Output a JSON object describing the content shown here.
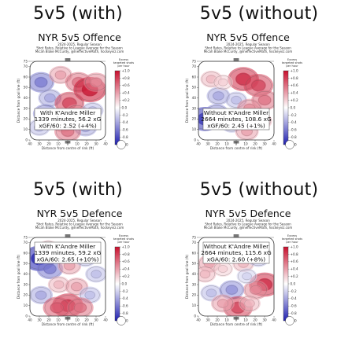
{
  "panels": [
    {
      "heading": "5v5 (with)",
      "title": "NYR 5v5 Offence",
      "subtitle": [
        "2024-2025, Regular Season",
        "Shot Rates, Relative to League Average for the Season",
        "Micah Blake McCurdy, @IneffectiveMath, hockeyviz.com"
      ],
      "box": [
        "With K'Andre Miller",
        "1339 minutes, 56.2 xG",
        "xGF/60: 2.52 (+4%)"
      ]
    },
    {
      "heading": "5v5 (without)",
      "title": "NYR 5v5 Offence",
      "subtitle": [
        "2024-2025, Regular Season",
        "Shot Rates, Relative to League Average for the Season",
        "Micah Blake McCurdy, @IneffectiveMath, hockeyviz.com"
      ],
      "box": [
        "Without K'Andre Miller",
        "2664 minutes, 108.6 xG",
        "xGF/60: 2.45 (+1%)"
      ]
    },
    {
      "heading": "5v5 (with)",
      "title": "NYR 5v5 Defence",
      "subtitle": [
        "2024-2025, Regular Season",
        "Shot Rates, Relative to League Average for the Season",
        "Micah Blake McCurdy, @IneffectiveMath, hockeyviz.com"
      ],
      "box": [
        "With K'Andre Miller",
        "1339 minutes, 59.2 xG",
        "xGA/60: 2.65 (+10%)"
      ]
    },
    {
      "heading": "5v5 (without)",
      "title": "NYR 5v5 Defence",
      "subtitle": [
        "2024-2025, Regular Season",
        "Shot Rates, Relative to League Average for the Season",
        "Micah Blake McCurdy, @IneffectiveMath, hockeyviz.com"
      ],
      "box": [
        "Without K'Andre Miller",
        "2664 minutes, 115.6 xG",
        "xGA/60: 2.60 (+8%)"
      ]
    }
  ],
  "axis": {
    "ylabel": "Distance from goal line (ft)",
    "xlabel": "Distance from centre of rink (ft)",
    "yticks": [
      75,
      70,
      60,
      50,
      40,
      30,
      20,
      10,
      0
    ],
    "xticks": [
      40,
      30,
      20,
      10,
      0,
      10,
      20,
      30,
      40
    ]
  },
  "colorbar": {
    "label": [
      "Excess",
      "targeted shots",
      "per hour"
    ],
    "ticks": [
      "+1.0",
      "+0.8",
      "+0.6",
      "+0.4",
      "+0.2",
      "0.0",
      "-0.2",
      "-0.4",
      "-0.6",
      "-0.8",
      "-1.0"
    ],
    "range": [
      -1.0,
      1.0
    ],
    "colors": {
      "high": "#c8102e",
      "mid": "#ffffff",
      "low": "#2020b0"
    }
  },
  "chart_data": [
    {
      "type": "heatmap",
      "title": "NYR 5v5 Offence",
      "xlabel": "Distance from centre of rink (ft)",
      "ylabel": "Distance from goal line (ft)",
      "xlim": [
        -42.5,
        42.5
      ],
      "ylim": [
        0,
        75
      ],
      "value_range": [
        -1.0,
        1.0
      ],
      "blobs": [
        {
          "x": -30,
          "y": 55,
          "v": -0.6
        },
        {
          "x": -8,
          "y": 62,
          "v": 0.4
        },
        {
          "x": 12,
          "y": 55,
          "v": 0.6
        },
        {
          "x": 25,
          "y": 48,
          "v": 1.0
        },
        {
          "x": 32,
          "y": 55,
          "v": 0.5
        },
        {
          "x": -20,
          "y": 40,
          "v": -0.4
        },
        {
          "x": 2,
          "y": 35,
          "v": 0.8
        },
        {
          "x": 10,
          "y": 25,
          "v": 0.5
        },
        {
          "x": -25,
          "y": 25,
          "v": -0.5
        },
        {
          "x": 28,
          "y": 28,
          "v": -0.3
        },
        {
          "x": -5,
          "y": 15,
          "v": 0.3
        },
        {
          "x": 20,
          "y": 12,
          "v": -0.4
        },
        {
          "x": -32,
          "y": 12,
          "v": -0.3
        },
        {
          "x": 0,
          "y": 8,
          "v": 0.6
        }
      ]
    },
    {
      "type": "heatmap",
      "title": "NYR 5v5 Offence",
      "xlabel": "Distance from centre of rink (ft)",
      "ylabel": "Distance from goal line (ft)",
      "xlim": [
        -42.5,
        42.5
      ],
      "ylim": [
        0,
        75
      ],
      "value_range": [
        -1.0,
        1.0
      ],
      "blobs": [
        {
          "x": -28,
          "y": 58,
          "v": 0.3
        },
        {
          "x": 8,
          "y": 58,
          "v": 0.9
        },
        {
          "x": 25,
          "y": 52,
          "v": 0.8
        },
        {
          "x": 32,
          "y": 38,
          "v": 0.6
        },
        {
          "x": -20,
          "y": 42,
          "v": -0.4
        },
        {
          "x": 0,
          "y": 38,
          "v": -0.3
        },
        {
          "x": 15,
          "y": 30,
          "v": 0.5
        },
        {
          "x": -35,
          "y": 20,
          "v": -0.9
        },
        {
          "x": -22,
          "y": 25,
          "v": -0.5
        },
        {
          "x": 28,
          "y": 18,
          "v": 0.3
        },
        {
          "x": -5,
          "y": 15,
          "v": -0.3
        },
        {
          "x": 12,
          "y": 8,
          "v": 0.4
        },
        {
          "x": -15,
          "y": 55,
          "v": 0.2
        }
      ]
    },
    {
      "type": "heatmap",
      "title": "NYR 5v5 Defence",
      "xlabel": "Distance from centre of rink (ft)",
      "ylabel": "Distance from goal line (ft)",
      "xlim": [
        -42.5,
        42.5
      ],
      "ylim": [
        0,
        75
      ],
      "value_range": [
        -1.0,
        1.0
      ],
      "blobs": [
        {
          "x": -32,
          "y": 55,
          "v": -1.0
        },
        {
          "x": -20,
          "y": 45,
          "v": -0.6
        },
        {
          "x": 2,
          "y": 48,
          "v": 0.4
        },
        {
          "x": 20,
          "y": 55,
          "v": -0.3
        },
        {
          "x": 32,
          "y": 40,
          "v": -0.3
        },
        {
          "x": -10,
          "y": 30,
          "v": 0.3
        },
        {
          "x": 10,
          "y": 28,
          "v": 0.4
        },
        {
          "x": -30,
          "y": 20,
          "v": -0.4
        },
        {
          "x": 25,
          "y": 20,
          "v": -0.3
        },
        {
          "x": 0,
          "y": 10,
          "v": 0.9
        },
        {
          "x": -12,
          "y": 8,
          "v": 0.7
        },
        {
          "x": 14,
          "y": 8,
          "v": 0.6
        },
        {
          "x": -22,
          "y": 65,
          "v": 0.2
        }
      ]
    },
    {
      "type": "heatmap",
      "title": "NYR 5v5 Defence",
      "xlabel": "Distance from centre of rink (ft)",
      "ylabel": "Distance from goal line (ft)",
      "xlim": [
        -42.5,
        42.5
      ],
      "ylim": [
        0,
        75
      ],
      "value_range": [
        -1.0,
        1.0
      ],
      "blobs": [
        {
          "x": -30,
          "y": 50,
          "v": 0.4
        },
        {
          "x": -15,
          "y": 45,
          "v": 0.2
        },
        {
          "x": 8,
          "y": 50,
          "v": 0.3
        },
        {
          "x": 25,
          "y": 55,
          "v": -0.3
        },
        {
          "x": 32,
          "y": 30,
          "v": 0.9
        },
        {
          "x": 22,
          "y": 25,
          "v": 0.5
        },
        {
          "x": -28,
          "y": 22,
          "v": -0.3
        },
        {
          "x": -5,
          "y": 25,
          "v": -0.5
        },
        {
          "x": 2,
          "y": 8,
          "v": 0.8
        },
        {
          "x": -15,
          "y": 12,
          "v": 0.4
        },
        {
          "x": 15,
          "y": 12,
          "v": 0.3
        },
        {
          "x": 12,
          "y": 38,
          "v": -0.2
        },
        {
          "x": -35,
          "y": 40,
          "v": 0.3
        }
      ]
    }
  ]
}
